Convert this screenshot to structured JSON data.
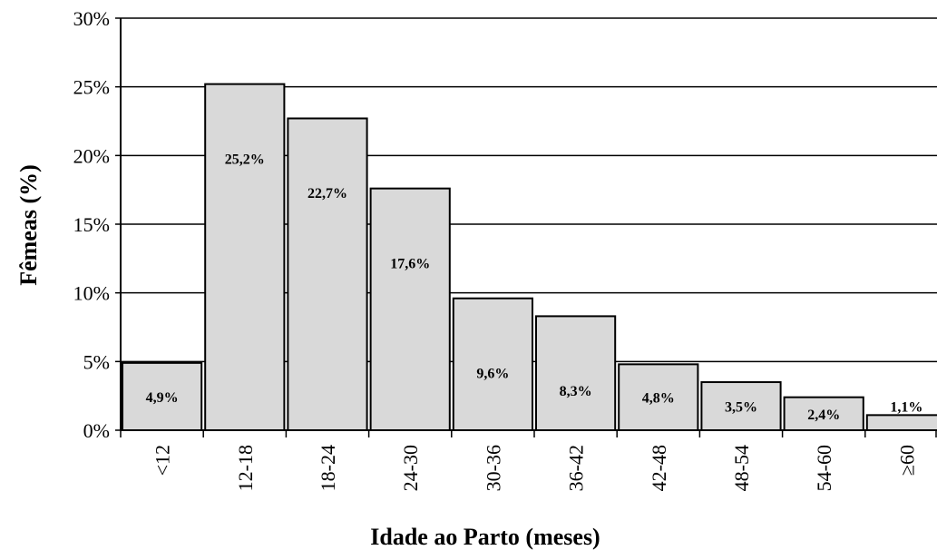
{
  "chart_data": {
    "type": "bar",
    "title": "",
    "xlabel": "Idade ao Parto (meses)",
    "ylabel": "Fêmeas (%)",
    "categories": [
      "<12",
      "12-18",
      "18-24",
      "24-30",
      "30-36",
      "36-42",
      "42-48",
      "48-54",
      "54-60",
      "≥60"
    ],
    "values": [
      4.9,
      25.2,
      22.7,
      17.6,
      9.6,
      8.3,
      4.8,
      3.5,
      2.4,
      1.1
    ],
    "data_labels": [
      "4,9%",
      "25,2%",
      "22,7%",
      "17,6%",
      "9,6%",
      "8,3%",
      "4,8%",
      "3,5%",
      "2,4%",
      "1,1%"
    ],
    "ylim": [
      0,
      30
    ],
    "yticks": [
      0,
      5,
      10,
      15,
      20,
      25,
      30
    ],
    "ytick_labels": [
      "0%",
      "5%",
      "10%",
      "15%",
      "20%",
      "25%",
      "30%"
    ],
    "grid": "horizontal",
    "legend": "none",
    "colors": {
      "bar_fill": "#d9d9d9",
      "bar_stroke": "#000000",
      "grid": "#000000"
    }
  }
}
